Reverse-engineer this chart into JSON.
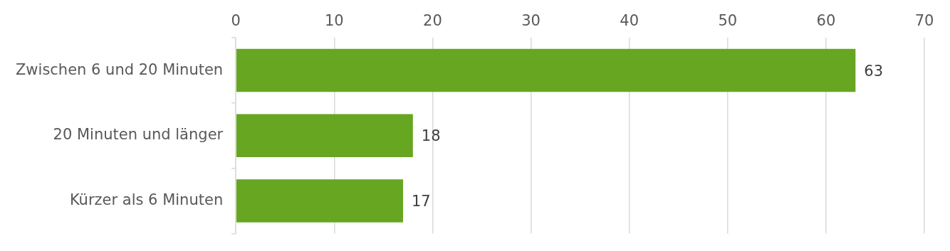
{
  "chart_data": {
    "type": "bar",
    "orientation": "horizontal",
    "categories": [
      "Zwischen 6 und 20 Minuten",
      "20 Minuten und länger",
      "Kürzer als 6 Minuten"
    ],
    "values": [
      63,
      18,
      17
    ],
    "color": "#66a621",
    "xlim": [
      0,
      70
    ],
    "xticks": [
      0,
      10,
      20,
      30,
      40,
      50,
      60,
      70
    ],
    "grid": "x",
    "data_labels": true
  }
}
